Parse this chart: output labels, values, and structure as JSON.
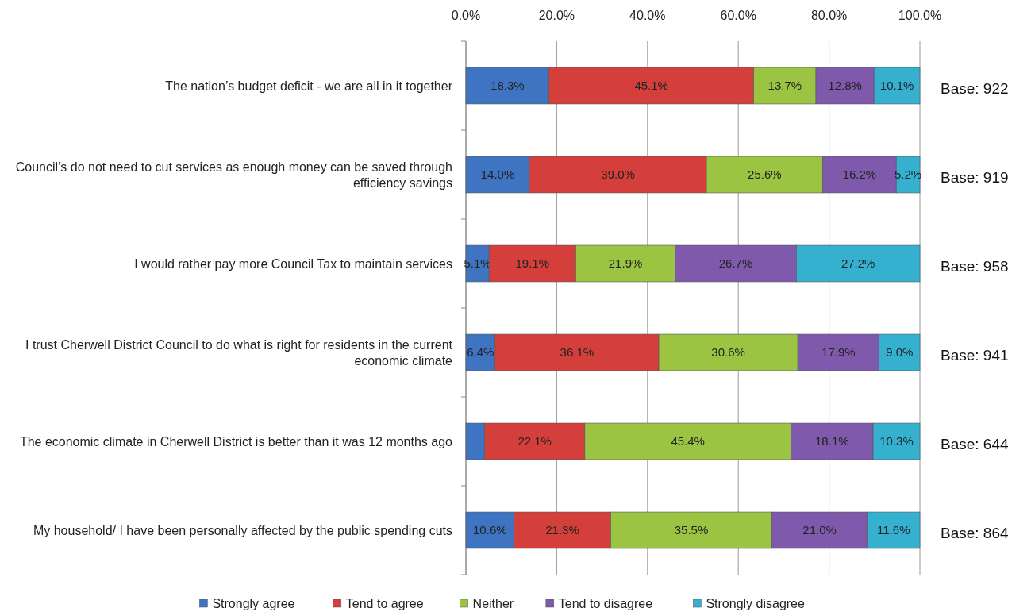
{
  "chart_data": {
    "type": "bar",
    "orientation": "horizontal",
    "stacked": true,
    "categories": [
      "The nation’s budget deficit - we are all in it together",
      "Council’s do not need to cut services as enough money can be saved through efficiency savings",
      "I would rather pay more Council Tax to maintain services",
      "I trust Cherwell District Council to do what is right for residents in the current economic climate",
      "The economic climate in Cherwell District is better than it was 12 months ago",
      "My household/ I have been personally affected by the public spending cuts"
    ],
    "series": [
      {
        "name": "Strongly agree",
        "color": "#3f74c2",
        "values": [
          18.3,
          14.0,
          5.1,
          6.4,
          4.1,
          10.6
        ],
        "value_labels": [
          "18.3%",
          "14.0%",
          "5.1%",
          "6.4%",
          null,
          "10.6%"
        ]
      },
      {
        "name": "Tend to agree",
        "color": "#d43f3c",
        "values": [
          45.1,
          39.0,
          19.1,
          36.1,
          22.1,
          21.3
        ],
        "value_labels": [
          "45.1%",
          "39.0%",
          "19.1%",
          "36.1%",
          "22.1%",
          "21.3%"
        ]
      },
      {
        "name": "Neither",
        "color": "#9cc443",
        "values": [
          13.7,
          25.6,
          21.9,
          30.6,
          45.4,
          35.5
        ],
        "value_labels": [
          "13.7%",
          "25.6%",
          "21.9%",
          "30.6%",
          "45.4%",
          "35.5%"
        ]
      },
      {
        "name": "Tend to disagree",
        "color": "#7f59ac",
        "values": [
          12.8,
          16.2,
          26.7,
          17.9,
          18.1,
          21.0
        ],
        "value_labels": [
          "12.8%",
          "16.2%",
          "26.7%",
          "17.9%",
          "18.1%",
          "21.0%"
        ]
      },
      {
        "name": "Strongly disagree",
        "color": "#35b1cf",
        "values": [
          10.1,
          5.2,
          27.2,
          9.0,
          10.3,
          11.6
        ],
        "value_labels": [
          "10.1%",
          "5.2%",
          "27.2%",
          "9.0%",
          "10.3%",
          "11.6%"
        ]
      }
    ],
    "xlim": [
      0,
      100
    ],
    "xticks": [
      {
        "value": 0,
        "label": "0.0%"
      },
      {
        "value": 20,
        "label": "20.0%"
      },
      {
        "value": 40,
        "label": "40.0%"
      },
      {
        "value": 60,
        "label": "60.0%"
      },
      {
        "value": 80,
        "label": "80.0%"
      },
      {
        "value": 100,
        "label": "100.0%"
      }
    ],
    "grid": "x",
    "legend": "bottom",
    "marker": "square",
    "annotations": [
      "Base: 922",
      "Base: 919",
      "Base: 958",
      "Base: 941",
      "Base: 644",
      "Base: 864"
    ]
  }
}
